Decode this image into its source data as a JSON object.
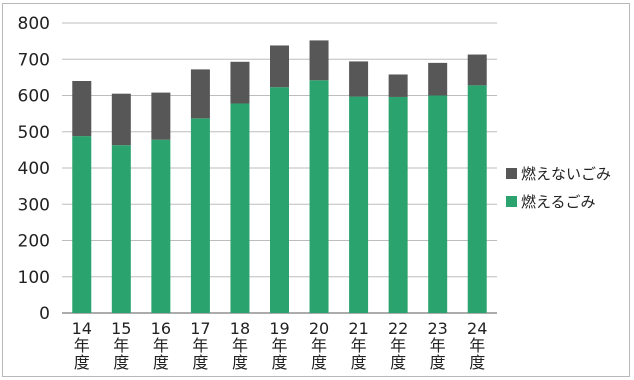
{
  "chart_data": {
    "type": "bar",
    "stacked": true,
    "categories": [
      "14年度",
      "15年度",
      "16年度",
      "17年度",
      "18年度",
      "19年度",
      "20年度",
      "21年度",
      "22年度",
      "23年度",
      "24年度"
    ],
    "series": [
      {
        "name": "燃えるごみ",
        "color": "#2BA36F",
        "values": [
          488,
          463,
          478,
          537,
          578,
          623,
          642,
          597,
          596,
          600,
          628
        ]
      },
      {
        "name": "燃えないごみ",
        "color": "#575757",
        "values": [
          152,
          142,
          130,
          135,
          115,
          115,
          110,
          97,
          62,
          90,
          85
        ]
      }
    ],
    "title": "",
    "xlabel": "",
    "ylabel": "",
    "ylim": [
      0,
      800
    ],
    "yticks": [
      0,
      100,
      200,
      300,
      400,
      500,
      600,
      700,
      800
    ],
    "grid": true,
    "legend_position": "right"
  }
}
